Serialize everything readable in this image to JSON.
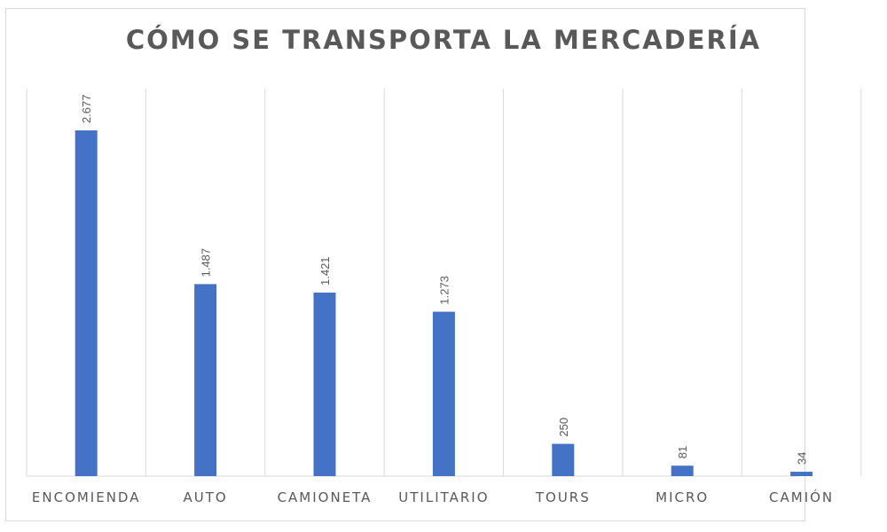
{
  "chart_data": {
    "type": "bar",
    "title": "CÓMO SE TRANSPORTA LA MERCADERÍA",
    "categories": [
      "ENCOMIENDA",
      "AUTO",
      "CAMIONETA",
      "UTILITARIO",
      "TOURS",
      "MICRO",
      "CAMIÓN"
    ],
    "values": [
      2677,
      1487,
      1421,
      1273,
      250,
      81,
      34
    ],
    "data_labels": [
      "2.677",
      "1.487",
      "1.421",
      "1.273",
      "250",
      "81",
      "34"
    ],
    "xlabel": "",
    "ylabel": "",
    "ylim": [
      0,
      3000
    ],
    "grid": "vertical category separators",
    "legend": "none",
    "bar_color": "#4472c4"
  }
}
